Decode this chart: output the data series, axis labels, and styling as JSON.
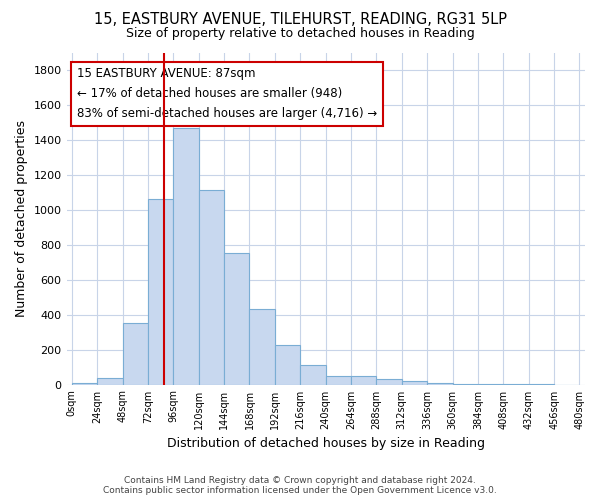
{
  "title_line1": "15, EASTBURY AVENUE, TILEHURST, READING, RG31 5LP",
  "title_line2": "Size of property relative to detached houses in Reading",
  "xlabel": "Distribution of detached houses by size in Reading",
  "ylabel": "Number of detached properties",
  "bar_color": "#c8d8ef",
  "bar_edge_color": "#7aadd4",
  "bin_edges": [
    0,
    24,
    48,
    72,
    96,
    120,
    144,
    168,
    192,
    216,
    240,
    264,
    288,
    312,
    336,
    360,
    384,
    408,
    432,
    456,
    480
  ],
  "bar_heights": [
    10,
    35,
    355,
    1060,
    1470,
    1115,
    750,
    435,
    225,
    110,
    50,
    48,
    30,
    20,
    10,
    5,
    2,
    2,
    1,
    0
  ],
  "property_size": 87,
  "vline_color": "#cc0000",
  "annotation_text": "15 EASTBURY AVENUE: 87sqm\n← 17% of detached houses are smaller (948)\n83% of semi-detached houses are larger (4,716) →",
  "annotation_box_color": "#ffffff",
  "annotation_box_edge_color": "#cc0000",
  "ylim": [
    0,
    1900
  ],
  "xlim": [
    -5,
    485
  ],
  "background_color": "#ffffff",
  "grid_color": "#c8d4e8",
  "footer_line1": "Contains HM Land Registry data © Crown copyright and database right 2024.",
  "footer_line2": "Contains public sector information licensed under the Open Government Licence v3.0."
}
